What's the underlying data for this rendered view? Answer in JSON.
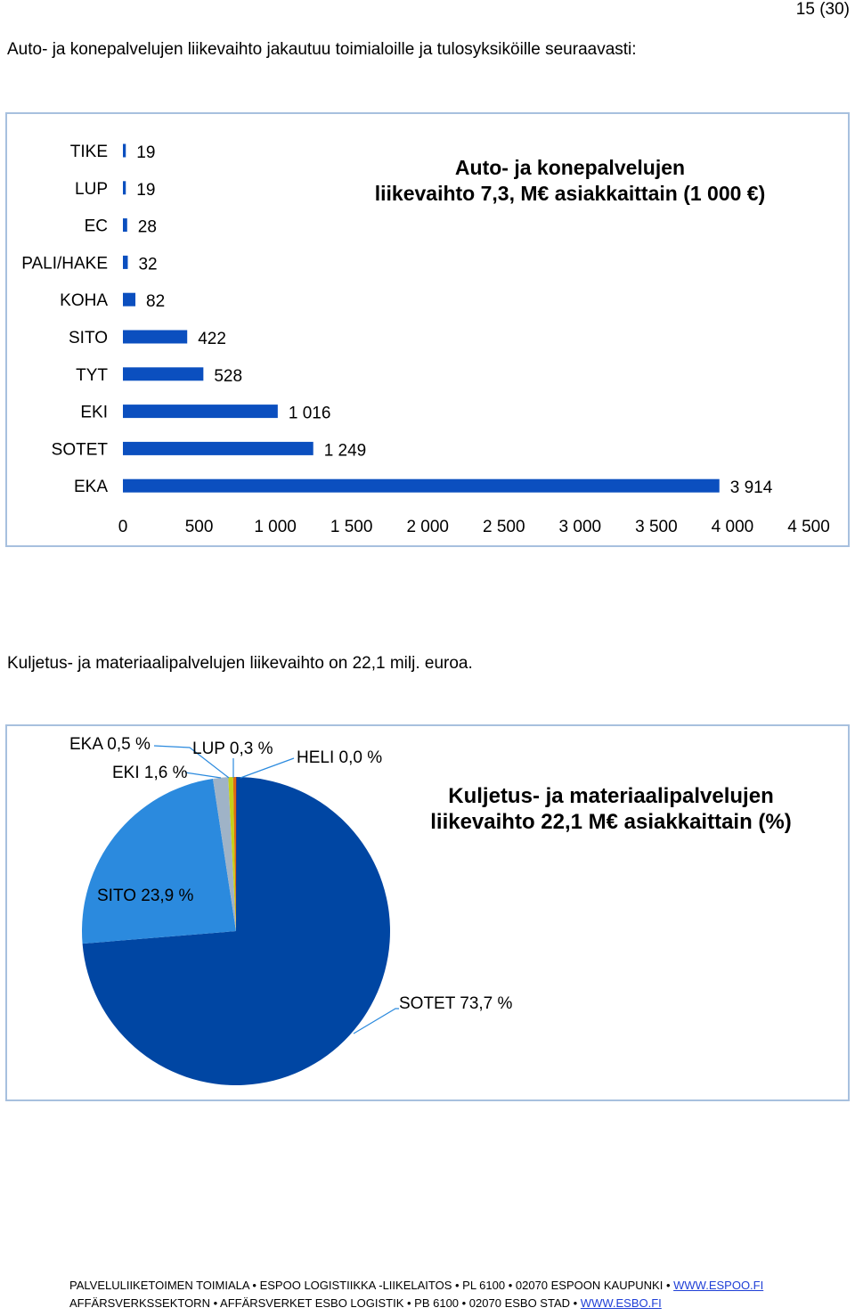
{
  "page_number": "15 (30)",
  "intro_text": "Auto- ja konepalvelujen liikevaihto jakautuu toimialoille ja tulosyksiköille seuraavasti:",
  "second_text": "Kuljetus- ja materiaalipalvelujen liikevaihto on 22,1 milj. euroa.",
  "chart_data": [
    {
      "type": "bar",
      "orientation": "horizontal",
      "title_lines": [
        "Auto- ja konepalvelujen",
        "liikevaihto 7,3, M€ asiakkaittain (1 000 €)"
      ],
      "categories": [
        "TIKE",
        "LUP",
        "EC",
        "PALI/HAKE",
        "KOHA",
        "SITO",
        "TYT",
        "EKI",
        "SOTET",
        "EKA"
      ],
      "values": [
        19,
        19,
        28,
        32,
        82,
        422,
        528,
        1016,
        1249,
        3914
      ],
      "value_labels": [
        "19",
        "19",
        "28",
        "32",
        "82",
        "422",
        "528",
        "1 016",
        "1 249",
        "3 914"
      ],
      "xlim": [
        0,
        4500
      ],
      "ticks": [
        0,
        500,
        1000,
        1500,
        2000,
        2500,
        3000,
        3500,
        4000,
        4500
      ],
      "tick_labels": [
        "0",
        "500",
        "1 000",
        "1 500",
        "2 000",
        "2 500",
        "3 000",
        "3 500",
        "4 000",
        "4 500"
      ],
      "bar_color": "#0b4fbf",
      "grid": false
    },
    {
      "type": "pie",
      "title_lines": [
        "Kuljetus- ja materiaalipalvelujen",
        "liikevaihto 22,1 M€ asiakkaittain (%)"
      ],
      "slices": [
        {
          "value": 73.7,
          "label": "SOTET 73,7 %",
          "color": "#0046a3"
        },
        {
          "value": 23.9,
          "label": "SITO 23,9 %",
          "color": "#2b8ade"
        },
        {
          "value": 1.6,
          "label": "EKI 1,6 %",
          "color": "#9fb3c7"
        },
        {
          "value": 0.5,
          "label": "EKA 0,5 %",
          "color": "#c5d018"
        },
        {
          "value": 0.3,
          "label": "LUP 0,3 %",
          "color": "#e06a10"
        },
        {
          "value": 0.0,
          "label": "HELI 0,0 %",
          "color": "#d11f1f"
        }
      ]
    }
  ],
  "footer": {
    "line1": "PALVELULIIKETOIMEN TOIMIALA • ESPOO LOGISTIIKKA -LIIKELAITOS • PL 6100 • 02070 ESPOON KAUPUNKI • ",
    "link1": "WWW.ESPOO.FI",
    "line2": "AFFÄRSVERKSSEKTORN • AFFÄRSVERKET ESBO LOGISTIK • PB 6100 • 02070 ESBO STAD • ",
    "link2": "WWW.ESBO.FI"
  }
}
